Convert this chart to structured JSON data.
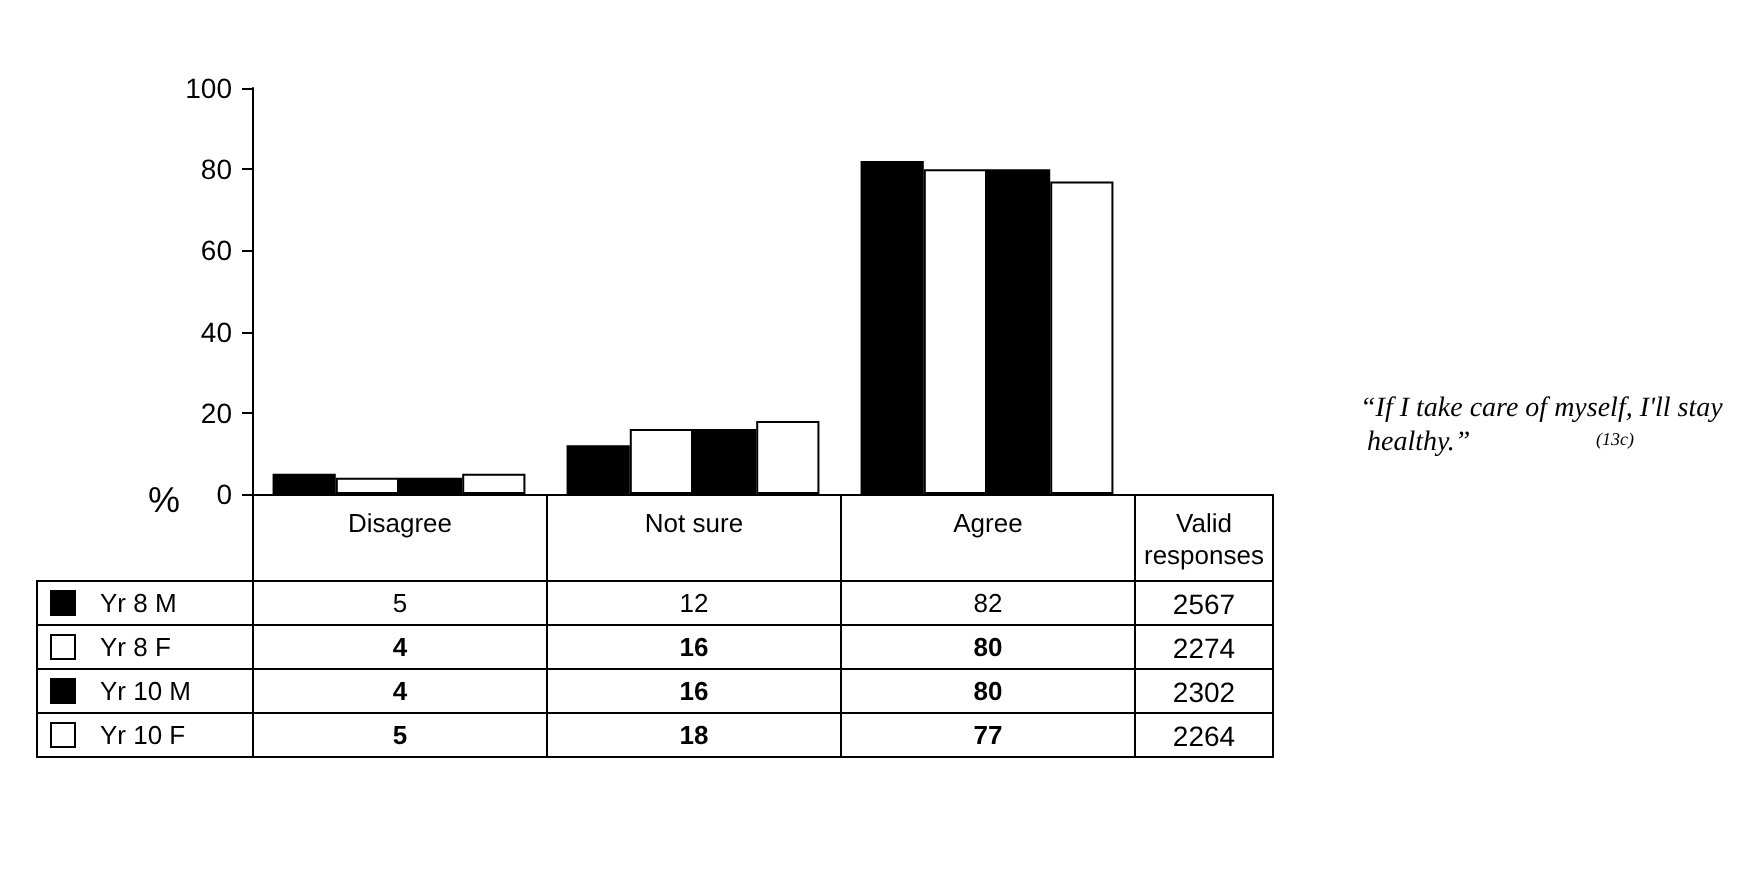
{
  "chart_data": {
    "type": "bar",
    "title": "“If I take care of myself, I'll stay healthy.”",
    "ylabel": "%",
    "categories": [
      "Disagree",
      "Not sure",
      "Agree"
    ],
    "series": [
      {
        "name": "Yr 8 M",
        "color": "#000000",
        "values": [
          5,
          12,
          82
        ]
      },
      {
        "name": "Yr 8 F",
        "color": "#ffffff",
        "values": [
          4,
          16,
          80
        ]
      },
      {
        "name": "Yr 10 M",
        "color": "#000000",
        "values": [
          4,
          16,
          80
        ]
      },
      {
        "name": "Yr 10 F",
        "color": "#ffffff",
        "values": [
          5,
          18,
          77
        ]
      }
    ],
    "ylim": [
      0,
      100
    ],
    "yticks": [
      0,
      20,
      40,
      60,
      80,
      100
    ],
    "grid": false,
    "legend": "bottom",
    "data_labels": true,
    "annotations": [
      "(13c)",
      "Valid responses",
      "2567",
      "2274",
      "2302",
      "2264"
    ]
  }
}
